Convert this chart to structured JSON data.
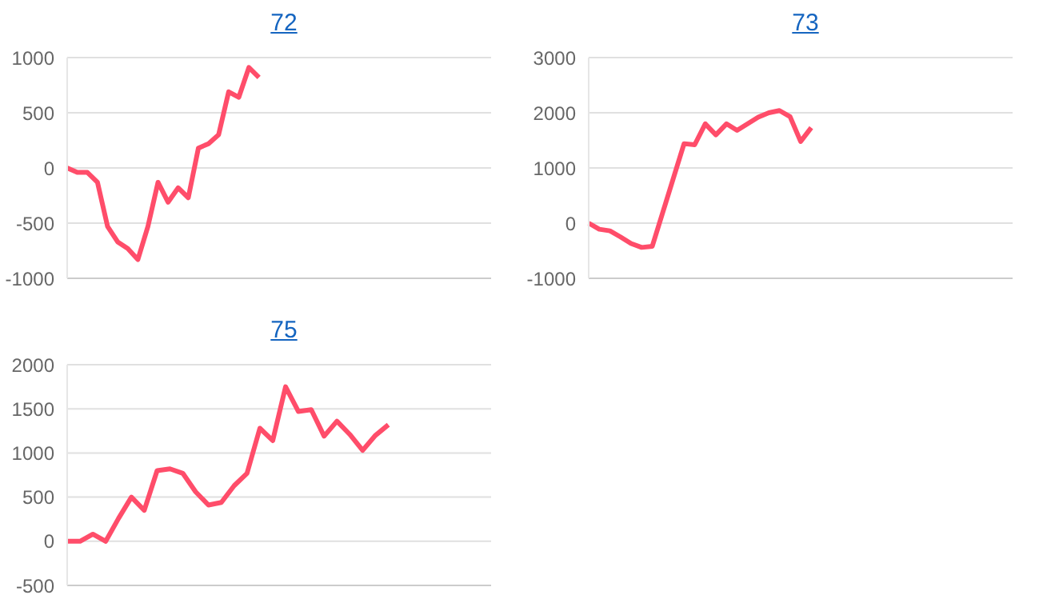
{
  "chart_data": [
    {
      "type": "line",
      "title": "72",
      "categories": [
        null,
        null,
        null,
        null,
        null,
        null,
        null,
        null,
        null,
        null,
        null,
        null,
        null,
        null,
        null,
        null,
        null,
        null,
        null,
        null,
        null,
        null,
        null,
        null,
        null,
        null,
        null,
        null,
        null,
        null,
        null,
        null,
        null,
        null,
        null,
        null,
        null,
        null,
        null,
        null,
        null,
        null,
        null
      ],
      "series": [
        {
          "color": "#ff4d6a",
          "values": [
            0,
            -40,
            -40,
            -130,
            -530,
            -670,
            -730,
            -830,
            -530,
            -130,
            -310,
            -180,
            -270,
            180,
            220,
            300,
            690,
            640,
            910,
            820,
            null,
            null,
            null,
            null,
            null,
            null,
            null,
            null,
            null,
            null,
            null,
            null,
            null,
            null,
            null,
            null,
            null,
            null,
            null,
            null,
            null,
            null,
            null
          ]
        }
      ],
      "ylim": [
        -1000,
        1000
      ],
      "yticks": [
        -1000,
        -500,
        0,
        500,
        1000
      ],
      "grid": "y",
      "tick_labels": "y"
    },
    {
      "type": "line",
      "title": "73",
      "categories": [
        null,
        null,
        null,
        null,
        null,
        null,
        null,
        null,
        null,
        null,
        null,
        null,
        null,
        null,
        null,
        null,
        null,
        null,
        null,
        null,
        null,
        null,
        null,
        null,
        null,
        null,
        null,
        null,
        null,
        null,
        null,
        null,
        null,
        null,
        null,
        null,
        null,
        null,
        null,
        null,
        null
      ],
      "series": [
        {
          "color": "#ff4d6a",
          "values": [
            0,
            -110,
            -140,
            -250,
            -370,
            -440,
            -420,
            200,
            820,
            1440,
            1420,
            1800,
            1600,
            1800,
            1680,
            1800,
            1920,
            2000,
            2040,
            1930,
            1480,
            1730,
            null,
            null,
            null,
            null,
            null,
            null,
            null,
            null,
            null,
            null,
            null,
            null,
            null,
            null,
            null,
            null,
            null,
            null,
            null
          ]
        }
      ],
      "ylim": [
        -1000,
        3000
      ],
      "yticks": [
        -1000,
        0,
        1000,
        2000,
        3000
      ],
      "grid": "y",
      "tick_labels": "y"
    },
    {
      "type": "line",
      "title": "75",
      "categories": [
        null,
        null,
        null,
        null,
        null,
        null,
        null,
        null,
        null,
        null,
        null,
        null,
        null,
        null,
        null,
        null,
        null,
        null,
        null,
        null,
        null,
        null,
        null,
        null,
        null,
        null,
        null,
        null,
        null,
        null,
        null,
        null,
        null,
        null
      ],
      "series": [
        {
          "color": "#ff4d6a",
          "values": [
            0,
            0,
            80,
            0,
            260,
            500,
            350,
            800,
            820,
            770,
            560,
            410,
            440,
            630,
            770,
            1280,
            1140,
            1750,
            1470,
            1490,
            1190,
            1360,
            1210,
            1030,
            1200,
            1320,
            null,
            null,
            null,
            null,
            null,
            null,
            null,
            null
          ]
        }
      ],
      "ylim": [
        -500,
        2000
      ],
      "yticks": [
        -500,
        0,
        500,
        1000,
        1500,
        2000
      ],
      "grid": "y",
      "tick_labels": "y"
    }
  ]
}
